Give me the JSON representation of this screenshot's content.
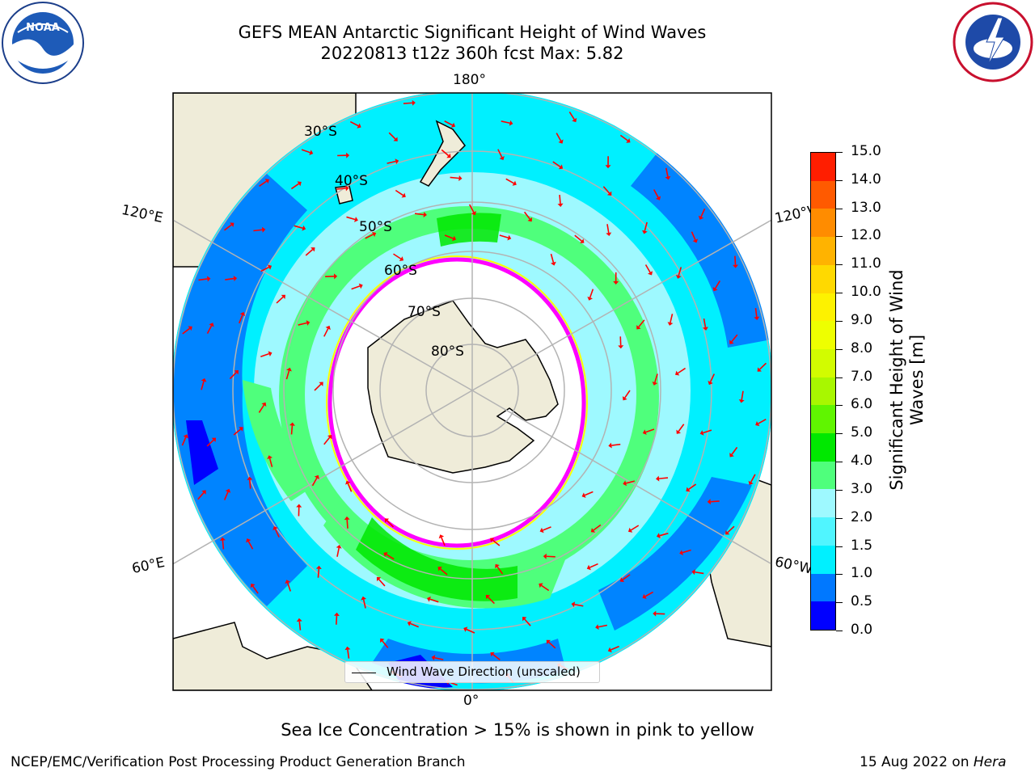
{
  "title": {
    "line1": "GEFS MEAN Antarctic Significant Height of Wind Waves",
    "line2": "20220813 t12z 360h fcst   Max: 5.82"
  },
  "logos": {
    "left": "noaa-logo",
    "right": "national-weather-service-logo"
  },
  "map": {
    "projection": "south-polar-stereographic",
    "longitude_labels": {
      "top": "180°",
      "upper_left": "120°E",
      "upper_right": "120°W",
      "lower_left": "60°E",
      "lower_right": "60°W",
      "bottom": "0°"
    },
    "latitude_labels": [
      "30°S",
      "40°S",
      "50°S",
      "60°S",
      "70°S",
      "80°S"
    ],
    "legend_label": "Wind Wave Direction (unscaled)",
    "arrow_color": "#ff0000",
    "ice_edge_colors": [
      "#ff00ff",
      "#ffff00"
    ],
    "land_color": "#efecd9"
  },
  "colorbar": {
    "label": "Significant Height of Wind Waves [m]",
    "ticks": [
      "0.0",
      "0.5",
      "1.0",
      "1.5",
      "2.0",
      "3.0",
      "4.0",
      "5.0",
      "6.0",
      "7.0",
      "8.0",
      "9.0",
      "10.0",
      "11.0",
      "12.0",
      "13.0",
      "14.0",
      "15.0"
    ],
    "colors": [
      "#0000ff",
      "#0078ff",
      "#00f0ff",
      "#50f5ff",
      "#9ef9ff",
      "#4fff7c",
      "#00e800",
      "#60f500",
      "#a8f700",
      "#d2fc00",
      "#eeff00",
      "#fdf200",
      "#ffd900",
      "#ffb300",
      "#ff8c00",
      "#ff5a00",
      "#ff1e00"
    ]
  },
  "note": "Sea Ice Concentration > 15% is shown in pink to yellow",
  "footer": {
    "left": "NCEP/EMC/Verification Post Processing Product Generation Branch",
    "date": "15 Aug 2022 on",
    "machine": "Hera"
  }
}
